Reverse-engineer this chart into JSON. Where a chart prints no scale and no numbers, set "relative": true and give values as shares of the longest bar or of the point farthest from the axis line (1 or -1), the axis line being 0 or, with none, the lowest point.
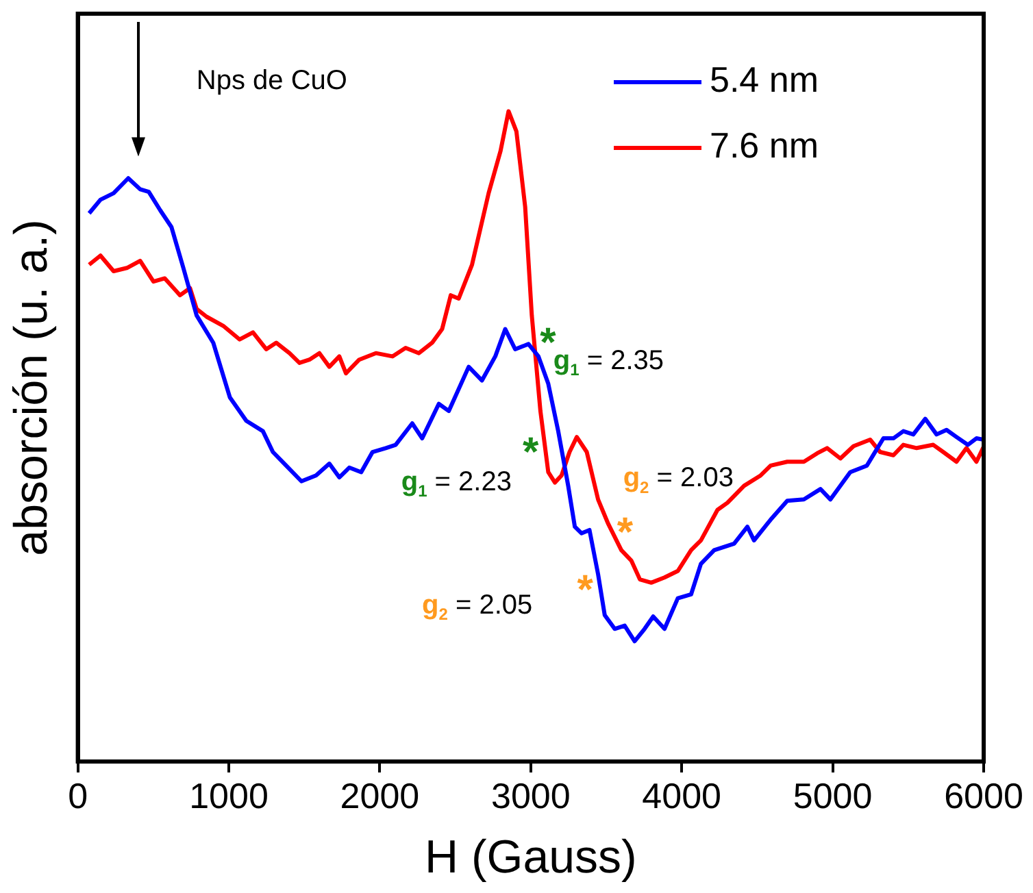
{
  "chart_data": {
    "type": "line",
    "xlabel": "H (Gauss)",
    "ylabel": "absorción (u. a.)",
    "relative": true,
    "xlim": [
      0,
      6000
    ],
    "xticks": [
      0,
      1000,
      2000,
      3000,
      4000,
      5000,
      6000
    ],
    "grid": false,
    "legend": "top right",
    "marker": "none",
    "line_style": "solid",
    "series": [
      {
        "name": "5.4 nm",
        "color": "#0000ff",
        "x": [
          75,
          150,
          237,
          334,
          413,
          470,
          545,
          620,
          699,
          787,
          897,
          1007,
          1116,
          1226,
          1292,
          1380,
          1481,
          1578,
          1666,
          1732,
          1798,
          1877,
          1952,
          2040,
          2105,
          2215,
          2281,
          2391,
          2457,
          2589,
          2677,
          2765,
          2831,
          2897,
          2985,
          3051,
          3116,
          3182,
          3248,
          3292,
          3336,
          3389,
          3446,
          3490,
          3556,
          3622,
          3688,
          3754,
          3811,
          3886,
          3974,
          4062,
          4127,
          4215,
          4347,
          4435,
          4479,
          4589,
          4699,
          4809,
          4919,
          4985,
          5116,
          5226,
          5336,
          5402,
          5468,
          5534,
          5613,
          5688,
          5754,
          5820,
          5895,
          5952,
          6000
        ],
        "values": [
          0.843,
          0.864,
          0.874,
          0.897,
          0.88,
          0.876,
          0.848,
          0.822,
          0.759,
          0.686,
          0.644,
          0.56,
          0.524,
          0.508,
          0.476,
          0.455,
          0.431,
          0.44,
          0.458,
          0.437,
          0.452,
          0.445,
          0.476,
          0.482,
          0.487,
          0.52,
          0.497,
          0.55,
          0.539,
          0.607,
          0.586,
          0.623,
          0.665,
          0.634,
          0.642,
          0.623,
          0.581,
          0.508,
          0.424,
          0.361,
          0.351,
          0.356,
          0.288,
          0.225,
          0.204,
          0.209,
          0.185,
          0.204,
          0.223,
          0.204,
          0.251,
          0.257,
          0.304,
          0.325,
          0.335,
          0.361,
          0.34,
          0.372,
          0.401,
          0.403,
          0.419,
          0.403,
          0.445,
          0.455,
          0.497,
          0.497,
          0.508,
          0.503,
          0.527,
          0.503,
          0.51,
          0.499,
          0.487,
          0.497,
          0.495
        ]
      },
      {
        "name": "7.6 nm",
        "color": "#ff0000",
        "x": [
          75,
          150,
          237,
          325,
          413,
          501,
          576,
          677,
          743,
          787,
          853,
          963,
          1072,
          1160,
          1248,
          1314,
          1402,
          1468,
          1534,
          1600,
          1666,
          1732,
          1776,
          1864,
          1974,
          2084,
          2171,
          2259,
          2347,
          2413,
          2470,
          2523,
          2611,
          2721,
          2800,
          2853,
          2905,
          2963,
          3007,
          3064,
          3116,
          3160,
          3204,
          3257,
          3305,
          3371,
          3446,
          3512,
          3600,
          3666,
          3723,
          3798,
          3886,
          3974,
          4062,
          4127,
          4237,
          4303,
          4413,
          4523,
          4589,
          4699,
          4809,
          4897,
          4963,
          5051,
          5138,
          5248,
          5314,
          5402,
          5468,
          5556,
          5666,
          5732,
          5820,
          5886,
          5952,
          6000
        ],
        "values": [
          0.764,
          0.778,
          0.754,
          0.759,
          0.77,
          0.738,
          0.743,
          0.717,
          0.728,
          0.696,
          0.684,
          0.67,
          0.649,
          0.66,
          0.634,
          0.644,
          0.628,
          0.613,
          0.618,
          0.628,
          0.607,
          0.623,
          0.597,
          0.618,
          0.628,
          0.623,
          0.636,
          0.628,
          0.644,
          0.665,
          0.717,
          0.712,
          0.764,
          0.874,
          0.939,
          1,
          0.969,
          0.853,
          0.686,
          0.539,
          0.445,
          0.429,
          0.44,
          0.476,
          0.499,
          0.476,
          0.403,
          0.366,
          0.325,
          0.309,
          0.28,
          0.275,
          0.283,
          0.293,
          0.325,
          0.34,
          0.387,
          0.398,
          0.424,
          0.44,
          0.455,
          0.461,
          0.461,
          0.474,
          0.482,
          0.466,
          0.485,
          0.495,
          0.476,
          0.471,
          0.487,
          0.482,
          0.487,
          0.476,
          0.461,
          0.482,
          0.461,
          0.484
        ]
      }
    ],
    "annotations": [
      "Nps de CuO",
      "*",
      "g$_{1}$ = 2.35",
      "*",
      "g$_{1}$ = 2.23",
      "*",
      "g$_{2}$ = 2.03",
      "*",
      "g$_{2}$ = 2.05"
    ]
  }
}
